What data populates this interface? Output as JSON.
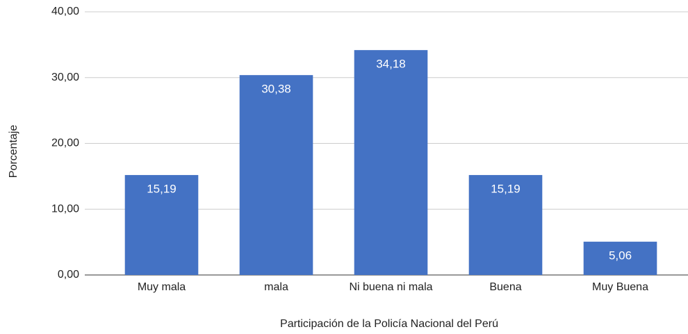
{
  "chart_data": {
    "type": "bar",
    "x_label": "Participación de la Policía Nacional del Perú",
    "y_label": "Porcentaje",
    "categories": [
      "Muy mala",
      "mala",
      "Ni buena ni mala",
      "Buena",
      "Muy Buena"
    ],
    "values": [
      15.19,
      30.38,
      34.18,
      15.19,
      5.06
    ],
    "value_labels": [
      "15,19",
      "30,38",
      "34,18",
      "15,19",
      "5,06"
    ],
    "color": "#4472c4",
    "ylim": [
      0,
      40
    ],
    "yticks": [
      {
        "value": 0,
        "label": "0,00"
      },
      {
        "value": 10,
        "label": "10,00"
      },
      {
        "value": 20,
        "label": "20,00"
      },
      {
        "value": 30,
        "label": "30,00"
      },
      {
        "value": 40,
        "label": "40,00"
      }
    ],
    "grid": true
  }
}
